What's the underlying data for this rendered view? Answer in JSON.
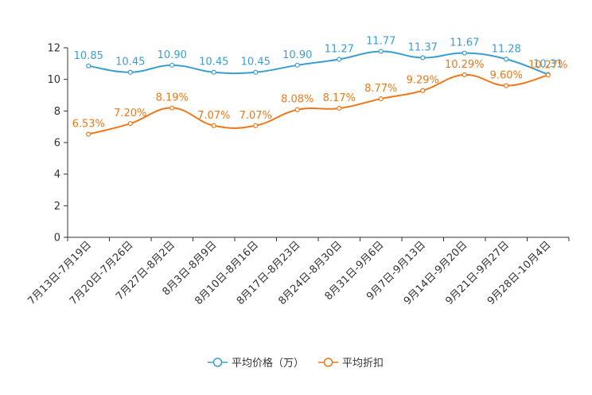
{
  "chart_data": {
    "type": "line",
    "title": "",
    "xlabel": "",
    "ylabel": "",
    "ylim": [
      0,
      12
    ],
    "yticks": [
      0,
      2,
      4,
      6,
      8,
      10,
      12
    ],
    "grid": false,
    "legend_position": "bottom-center",
    "categories": [
      "7月13日-7月19日",
      "7月20日-7月26日",
      "7月27日-8月2日",
      "8月3日-8月9日",
      "8月10日-8月16日",
      "8月17日-8月23日",
      "8月24日-8月30日",
      "8月31日-9月6日",
      "9月7日-9月13日",
      "9月14日-9月20日",
      "9月21日-9月27日",
      "9月28日-10月4日"
    ],
    "series": [
      {
        "name": "平均价格（万）",
        "color": "#3a9fd0",
        "values": [
          10.85,
          10.45,
          10.9,
          10.45,
          10.45,
          10.9,
          11.27,
          11.77,
          11.37,
          11.67,
          11.28,
          10.31
        ],
        "labels": [
          "10.85",
          "10.45",
          "10.90",
          "10.45",
          "10.45",
          "10.90",
          "11.27",
          "11.77",
          "11.37",
          "11.67",
          "11.28",
          "10.31"
        ]
      },
      {
        "name": "平均折扣",
        "color": "#f07818",
        "values": [
          6.53,
          7.2,
          8.19,
          7.07,
          7.07,
          8.08,
          8.17,
          8.77,
          9.29,
          10.29,
          9.6,
          10.27
        ],
        "labels": [
          "6.53%",
          "7.20%",
          "8.19%",
          "7.07%",
          "7.07%",
          "8.08%",
          "8.17%",
          "8.77%",
          "9.29%",
          "10.29%",
          "9.60%",
          "10.27%"
        ]
      }
    ]
  }
}
